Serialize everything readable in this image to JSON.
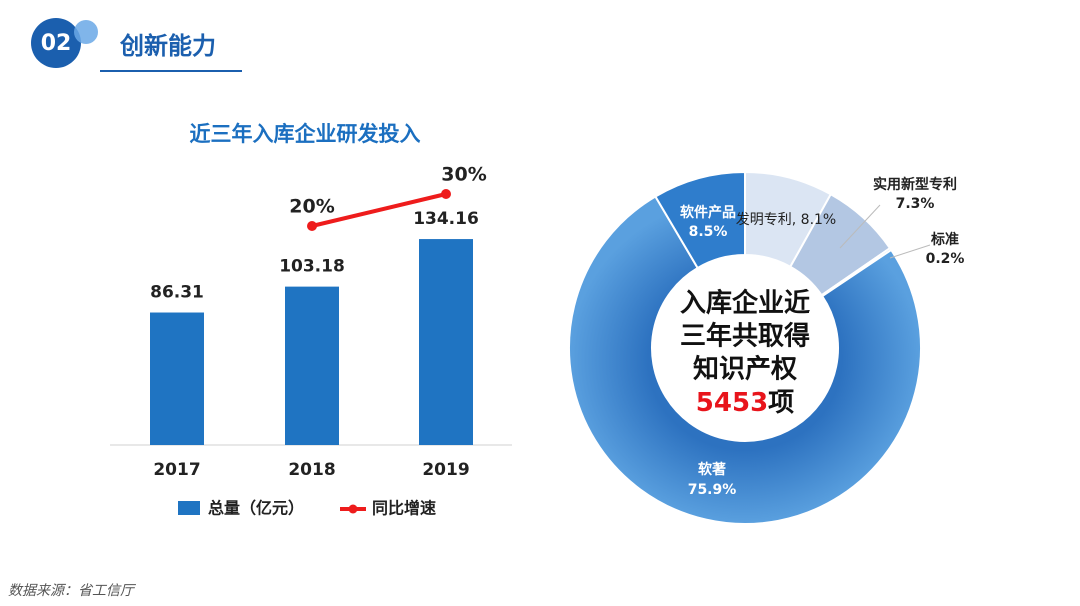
{
  "header": {
    "number": "02",
    "title": "创新能力"
  },
  "chart_data": [
    {
      "type": "bar",
      "title": "近三年入库企业研发投入",
      "categories": [
        "2017",
        "2018",
        "2019"
      ],
      "series": [
        {
          "name": "总量（亿元）",
          "type": "bar",
          "color": "#1f74c2",
          "values": [
            86.31,
            103.18,
            134.16
          ]
        },
        {
          "name": "同比增速",
          "type": "line",
          "color": "#ee1c1c",
          "values": [
            null,
            20,
            30
          ],
          "value_labels": [
            null,
            "20%",
            "30%"
          ]
        }
      ]
    },
    {
      "type": "donut",
      "categories": [
        "发明专利",
        "实用新型专利",
        "标准",
        "软著",
        "软件产品"
      ],
      "values": [
        8.1,
        7.3,
        0.2,
        75.9,
        8.5
      ],
      "value_labels": [
        ", 8.1%",
        "7.3%",
        "0.2%",
        "75.9%",
        "8.5%"
      ],
      "colors": [
        "#dbe5f3",
        "#b3c7e3",
        "#8eadd6",
        "#4f93d6",
        "#2f7dcc"
      ],
      "center_lines": [
        "入库企业近",
        "三年共取得",
        "知识产权"
      ],
      "center_value": 5453,
      "center_unit": "项"
    }
  ],
  "footer": "数据来源：省工信厅"
}
